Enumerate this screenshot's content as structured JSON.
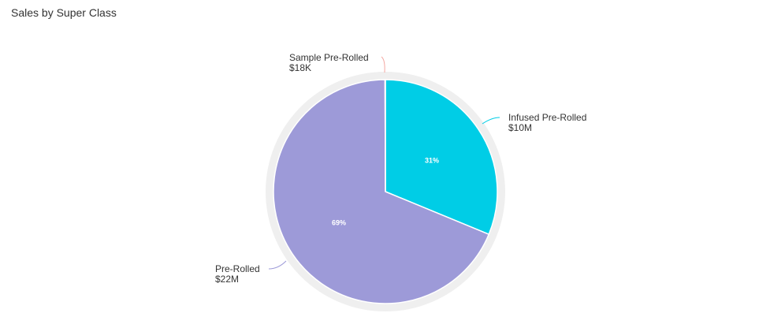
{
  "chart_data": {
    "type": "pie",
    "title": "Sales by Super Class",
    "slices": [
      {
        "label": "Infused Pre-Rolled",
        "value_label": "$10M",
        "value": 10,
        "percent_label": "31%",
        "color": "#00cde6",
        "leader_color": "#00cde6"
      },
      {
        "label": "Pre-Rolled",
        "value_label": "$22M",
        "value": 22,
        "percent_label": "69%",
        "color": "#9d9ad8",
        "leader_color": "#9d9ad8"
      },
      {
        "label": "Sample Pre-Rolled",
        "value_label": "$18K",
        "value": 0.018,
        "percent_label": "",
        "color": "#f4a6a0",
        "leader_color": "#f4a6a0"
      }
    ],
    "ring_color": "#efefef",
    "legend": "none"
  }
}
